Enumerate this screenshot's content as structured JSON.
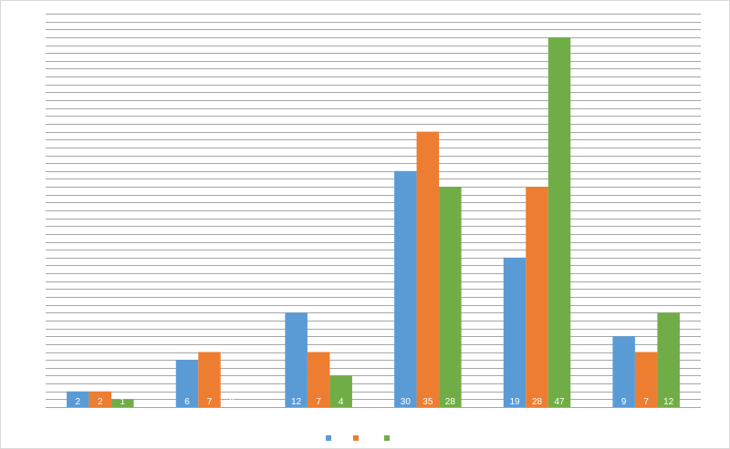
{
  "chart_data": {
    "type": "bar",
    "categories": [
      "",
      "",
      "",
      "",
      "",
      ""
    ],
    "series": [
      {
        "color": "#5b9bd5",
        "values": [
          2,
          6,
          12,
          30,
          19,
          9
        ]
      },
      {
        "color": "#ed7d31",
        "values": [
          2,
          7,
          7,
          35,
          28,
          7
        ]
      },
      {
        "color": "#70ad47",
        "values": [
          1,
          0,
          4,
          28,
          47,
          12
        ]
      }
    ],
    "ylim": [
      0,
      50
    ],
    "grid": true,
    "data_labels": true,
    "legend": "bottom",
    "title": "",
    "xlabel": "",
    "ylabel": ""
  }
}
